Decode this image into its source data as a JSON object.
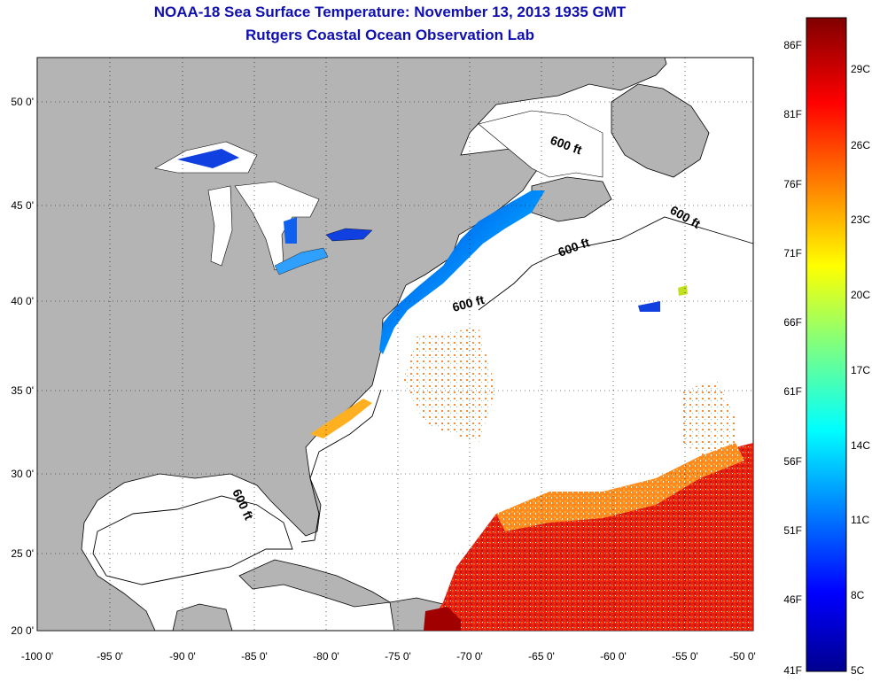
{
  "title_line1": "NOAA-18 Sea Surface Temperature:  November 13, 2013 1935 GMT",
  "title_line2": "Rutgers Coastal Ocean Observation Lab",
  "lon_labels": [
    "-100 0'",
    "-95 0'",
    "-90 0'",
    "-85 0'",
    "-80 0'",
    "-75 0'",
    "-70 0'",
    "-65 0'",
    "-60 0'",
    "-55 0'",
    "-50 0'"
  ],
  "lat_labels": [
    "20 0'",
    "25 0'",
    "30 0'",
    "35 0'",
    "40 0'",
    "45 0'",
    "50 0'"
  ],
  "depth_contour_label": "600 ft",
  "colorbar": {
    "fahrenheit_labels": [
      "86F",
      "81F",
      "76F",
      "71F",
      "66F",
      "61F",
      "56F",
      "51F",
      "46F",
      "41F"
    ],
    "celsius_labels": [
      "29C",
      "26C",
      "23C",
      "20C",
      "17C",
      "14C",
      "11C",
      "8C",
      "5C"
    ]
  },
  "colors": {
    "title": "#1010b0",
    "land": "#b4b4b4",
    "ocean_no_data": "#ffffff"
  }
}
